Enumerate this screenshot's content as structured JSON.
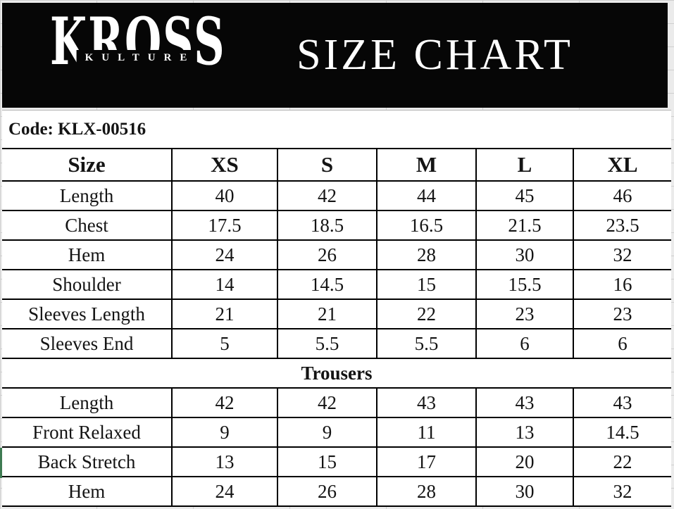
{
  "brand": {
    "name": "KROSS",
    "sub": "KULTURE"
  },
  "header": {
    "title": "SIZE CHART"
  },
  "code_text": "Code: KLX-00516",
  "table": {
    "columns": [
      "Size",
      "XS",
      "S",
      "M",
      "L",
      "XL"
    ],
    "shirt_rows": [
      {
        "label": "Length",
        "values": [
          40,
          42,
          44,
          45,
          46
        ]
      },
      {
        "label": "Chest",
        "values": [
          17.5,
          18.5,
          16.5,
          21.5,
          23.5
        ]
      },
      {
        "label": "Hem",
        "values": [
          24,
          26,
          28,
          30,
          32
        ]
      },
      {
        "label": "Shoulder",
        "values": [
          14,
          14.5,
          15,
          15.5,
          16
        ]
      },
      {
        "label": "Sleeves Length",
        "values": [
          21,
          21,
          22,
          23,
          23
        ]
      },
      {
        "label": "Sleeves End",
        "values": [
          5,
          5.5,
          5.5,
          6,
          6
        ]
      }
    ],
    "section_label": "Trousers",
    "trouser_rows": [
      {
        "label": "Length",
        "values": [
          42,
          42,
          43,
          43,
          43
        ]
      },
      {
        "label": "Front Relaxed",
        "values": [
          9,
          9,
          11,
          13,
          14.5
        ]
      },
      {
        "label": "Back Stretch",
        "values": [
          13,
          15,
          17,
          20,
          22
        ]
      },
      {
        "label": "Hem",
        "values": [
          24,
          26,
          28,
          30,
          32
        ]
      }
    ]
  },
  "colors": {
    "banner_bg": "#060606",
    "banner_text": "#ffffff",
    "table_border": "#000000",
    "selection_green": "#3e7b52"
  }
}
